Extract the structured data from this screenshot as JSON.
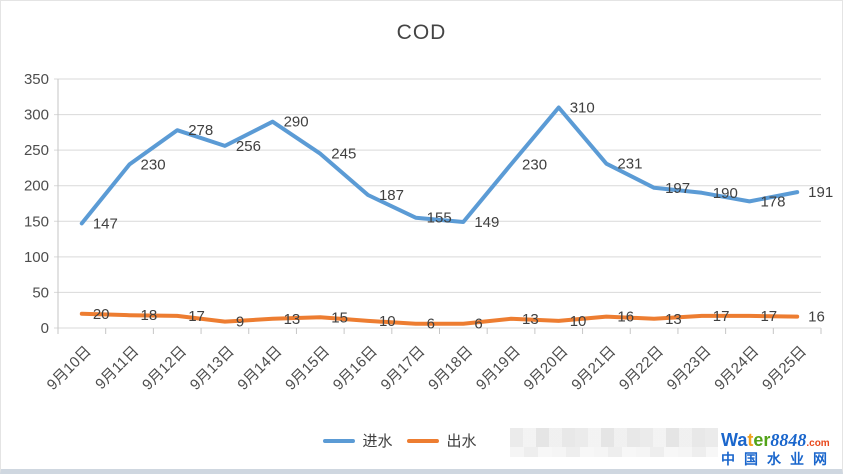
{
  "chart_data": {
    "type": "line",
    "title": "COD",
    "categories": [
      "9月10日",
      "9月11日",
      "9月12日",
      "9月13日",
      "9月14日",
      "9月15日",
      "9月16日",
      "9月17日",
      "9月18日",
      "9月19日",
      "9月20日",
      "9月21日",
      "9月22日",
      "9月23日",
      "9月24日",
      "9月25日"
    ],
    "series": [
      {
        "name": "进水",
        "color": "#5B9BD5",
        "values": [
          147,
          230,
          278,
          256,
          290,
          245,
          187,
          155,
          149,
          230,
          310,
          231,
          197,
          190,
          178,
          191
        ]
      },
      {
        "name": "出水",
        "color": "#ED7D31",
        "values": [
          20,
          18,
          17,
          9,
          13,
          15,
          10,
          6,
          6,
          13,
          10,
          16,
          13,
          17,
          17,
          16
        ]
      }
    ],
    "ylim": [
      0,
      350
    ],
    "yticks": [
      0,
      50,
      100,
      150,
      200,
      250,
      300,
      350
    ],
    "grid": true,
    "data_labels": true,
    "legend_position": "bottom",
    "gridline_color": "#D9D9D9",
    "axis_color": "#C6C6C6"
  },
  "watermark": {
    "line1_parts": [
      {
        "text": "Wa",
        "color": "#1a66cc"
      },
      {
        "text": "t",
        "color": "#f0a11e"
      },
      {
        "text": "er",
        "color": "#53a318"
      },
      {
        "text": "8848",
        "color": "#1a66cc",
        "italic": true
      },
      {
        "text": ".com",
        "color": "#e8491d",
        "small": true
      }
    ],
    "line2": "中国水业网",
    "line2_color": "#1a66cc"
  }
}
